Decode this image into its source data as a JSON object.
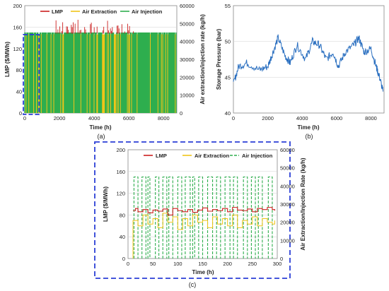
{
  "colors": {
    "lmp": "#cc1f1f",
    "extraction": "#f0c419",
    "injection": "#2fae4e",
    "pressure": "#2a6fc0",
    "highlight": "#2b3fd6"
  },
  "chart_data": [
    {
      "id": "a",
      "type": "line",
      "caption": "(a)",
      "xlabel": "Time (h)",
      "ylabel": "LMP ($/MWh)",
      "y2label": "Air extraction/injection rate (kg/h)",
      "xlim": [
        0,
        8760
      ],
      "ylim": [
        0,
        200
      ],
      "y2lim": [
        0,
        60000
      ],
      "xticks": [
        "0",
        "2000",
        "4000",
        "6000",
        "8000"
      ],
      "yticks": [
        "0",
        "40",
        "80",
        "120",
        "160",
        "200"
      ],
      "y2ticks": [
        "0",
        "10000",
        "20000",
        "30000",
        "40000",
        "50000",
        "60000"
      ],
      "legend": [
        "LMP",
        "Air Extraction",
        "Air Injection"
      ],
      "legend_position": "top-left",
      "series": [
        {
          "name": "LMP",
          "axis": "left",
          "description_range": [
            0,
            175
          ],
          "typical": [
            60,
            150
          ]
        },
        {
          "name": "Air Extraction",
          "axis": "right",
          "max": 44000
        },
        {
          "name": "Air Injection",
          "axis": "right",
          "max": 45000
        }
      ],
      "highlight_x": [
        0,
        580
      ]
    },
    {
      "id": "b",
      "type": "line",
      "caption": "(b)",
      "xlabel": "Time (h)",
      "ylabel": "Storage Pressure (bar)",
      "xlim": [
        0,
        8760
      ],
      "ylim": [
        40,
        55
      ],
      "xticks": [
        "0",
        "2000",
        "4000",
        "6000",
        "8000"
      ],
      "yticks": [
        "40",
        "45",
        "50",
        "55"
      ],
      "series": [
        {
          "name": "",
          "x": [
            0,
            300,
            800,
            1500,
            2000,
            2300,
            2600,
            3000,
            3300,
            3700,
            4200,
            4600,
            5000,
            5400,
            5800,
            6100,
            6500,
            7000,
            7300,
            7600,
            8000,
            8300,
            8500,
            8700
          ],
          "y": [
            44.0,
            46.5,
            47.0,
            46.0,
            46.5,
            48.5,
            50.5,
            48.0,
            47.0,
            49.5,
            47.5,
            50.0,
            49.5,
            47.5,
            48.5,
            46.5,
            48.5,
            49.5,
            50.5,
            48.5,
            49.0,
            46.5,
            45.0,
            43.0
          ]
        }
      ]
    },
    {
      "id": "c",
      "type": "line",
      "caption": "(c)",
      "xlabel": "Time (h)",
      "ylabel": "LMP ($/MWh)",
      "y2label": "Air Extraction/Injection Rate (kg/h)",
      "xlim": [
        0,
        300
      ],
      "ylim": [
        0,
        200
      ],
      "y2lim": [
        0,
        60000
      ],
      "xticks": [
        "0",
        "50",
        "100",
        "150",
        "200",
        "250",
        "300"
      ],
      "yticks": [
        "0",
        "40",
        "80",
        "120",
        "160",
        "200"
      ],
      "y2ticks": [
        "0",
        "10000",
        "20000",
        "30000",
        "40000",
        "50000",
        "60000"
      ],
      "legend": [
        "LMP",
        "Air Extraction",
        "Air Injection"
      ],
      "legend_position": "top",
      "series": [
        {
          "name": "LMP",
          "axis": "left",
          "x": [
            10,
            15,
            20,
            30,
            40,
            50,
            60,
            70,
            80,
            90,
            100,
            110,
            120,
            130,
            140,
            150,
            160,
            170,
            180,
            190,
            200,
            210,
            220,
            230,
            240,
            250,
            260,
            270,
            280,
            290,
            295
          ],
          "y": [
            88,
            92,
            86,
            90,
            84,
            89,
            87,
            91,
            80,
            92,
            88,
            86,
            90,
            85,
            89,
            93,
            87,
            90,
            88,
            92,
            86,
            94,
            89,
            88,
            91,
            86,
            92,
            90,
            94,
            90,
            88
          ]
        },
        {
          "name": "Air Extraction",
          "axis": "right",
          "x": [
            10,
            20,
            30,
            40,
            50,
            60,
            70,
            80,
            90,
            100,
            110,
            120,
            130,
            140,
            150,
            160,
            170,
            180,
            190,
            200,
            210,
            220,
            230,
            240,
            250,
            260,
            270,
            280,
            290,
            295
          ],
          "y": [
            21000,
            18000,
            24000,
            19000,
            22000,
            17000,
            25000,
            20000,
            23000,
            16000,
            22000,
            18000,
            24000,
            20000,
            21000,
            17000,
            23000,
            19000,
            22000,
            18000,
            24000,
            17000,
            21000,
            19000,
            23000,
            18000,
            22000,
            20000,
            19000,
            21000
          ]
        },
        {
          "name": "Air Injection",
          "axis": "right",
          "on_intervals": [
            [
              12,
              20
            ],
            [
              28,
              36
            ],
            [
              40,
              44
            ],
            [
              55,
              62
            ],
            [
              70,
              78
            ],
            [
              82,
              90
            ],
            [
              100,
              108
            ],
            [
              115,
              125
            ],
            [
              130,
              134
            ],
            [
              142,
              150
            ],
            [
              160,
              170
            ],
            [
              178,
              186
            ],
            [
              195,
              205
            ],
            [
              212,
              220
            ],
            [
              232,
              240
            ],
            [
              248,
              256
            ],
            [
              262,
              270
            ],
            [
              282,
              290
            ]
          ],
          "level": 45000
        }
      ],
      "highlight_frame": true
    }
  ]
}
